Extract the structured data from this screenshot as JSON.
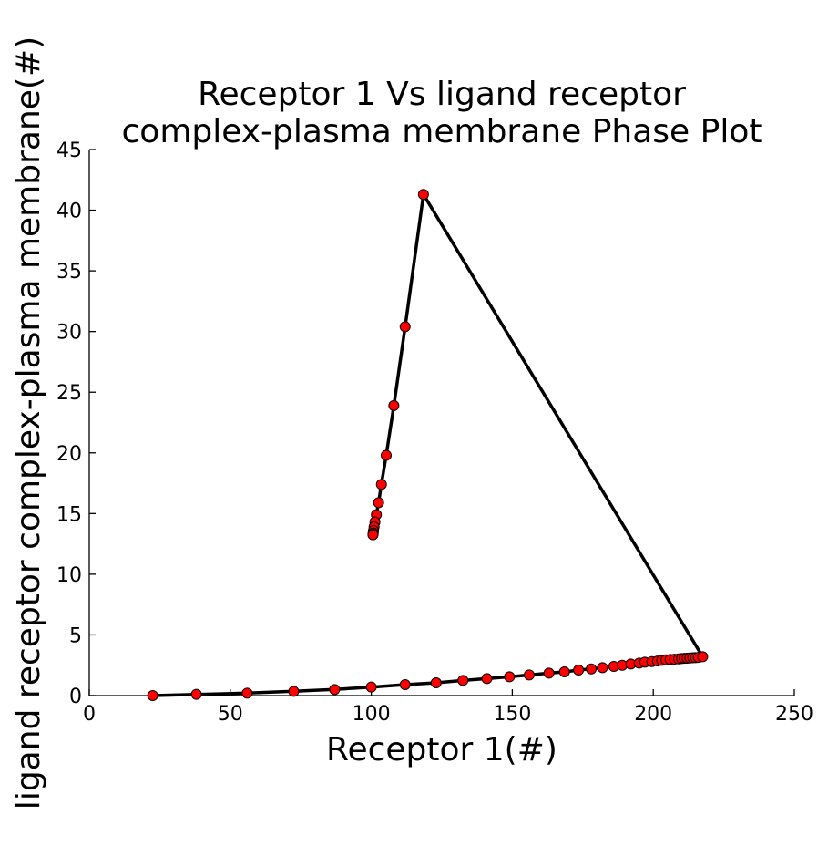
{
  "chart_data": {
    "type": "line",
    "title_lines": [
      "Receptor 1 Vs ligand receptor",
      "complex-plasma membrane Phase Plot"
    ],
    "xlabel": "Receptor 1(#)",
    "ylabel": "ligand receptor complex-plasma membrane(#)",
    "xlim": [
      0,
      250
    ],
    "ylim": [
      0,
      45
    ],
    "xticks": [
      0,
      50,
      100,
      150,
      200,
      250
    ],
    "yticks": [
      0,
      5,
      10,
      15,
      20,
      25,
      30,
      35,
      40,
      45
    ],
    "grid": false,
    "legend": "none",
    "marker_color": "#ff0000",
    "line_color": "#000000",
    "series": [
      {
        "x": [
          22.5,
          38,
          56,
          72.5,
          87,
          100,
          112,
          123,
          132.5,
          141,
          149,
          156,
          163,
          168.5,
          173.5,
          178,
          182,
          186,
          189,
          192,
          195,
          197,
          199.5,
          201.5,
          203,
          204.5,
          206,
          207.5,
          209,
          210,
          211,
          212,
          213,
          214,
          215,
          216,
          217.5,
          118.5,
          112,
          108,
          105.3,
          103.6,
          102.6,
          101.8,
          101.3,
          101,
          100.8,
          100.7,
          100.6,
          100.6
        ],
        "y": [
          0,
          0.1,
          0.2,
          0.35,
          0.5,
          0.7,
          0.9,
          1.05,
          1.25,
          1.4,
          1.55,
          1.7,
          1.85,
          1.95,
          2.1,
          2.2,
          2.3,
          2.4,
          2.5,
          2.6,
          2.68,
          2.75,
          2.8,
          2.85,
          2.9,
          2.95,
          2.98,
          3.0,
          3.02,
          3.05,
          3.07,
          3.08,
          3.1,
          3.12,
          3.13,
          3.15,
          3.2,
          41.3,
          30.4,
          23.9,
          19.8,
          17.4,
          15.9,
          14.9,
          14.3,
          13.9,
          13.6,
          13.4,
          13.3,
          13.25
        ]
      }
    ]
  }
}
